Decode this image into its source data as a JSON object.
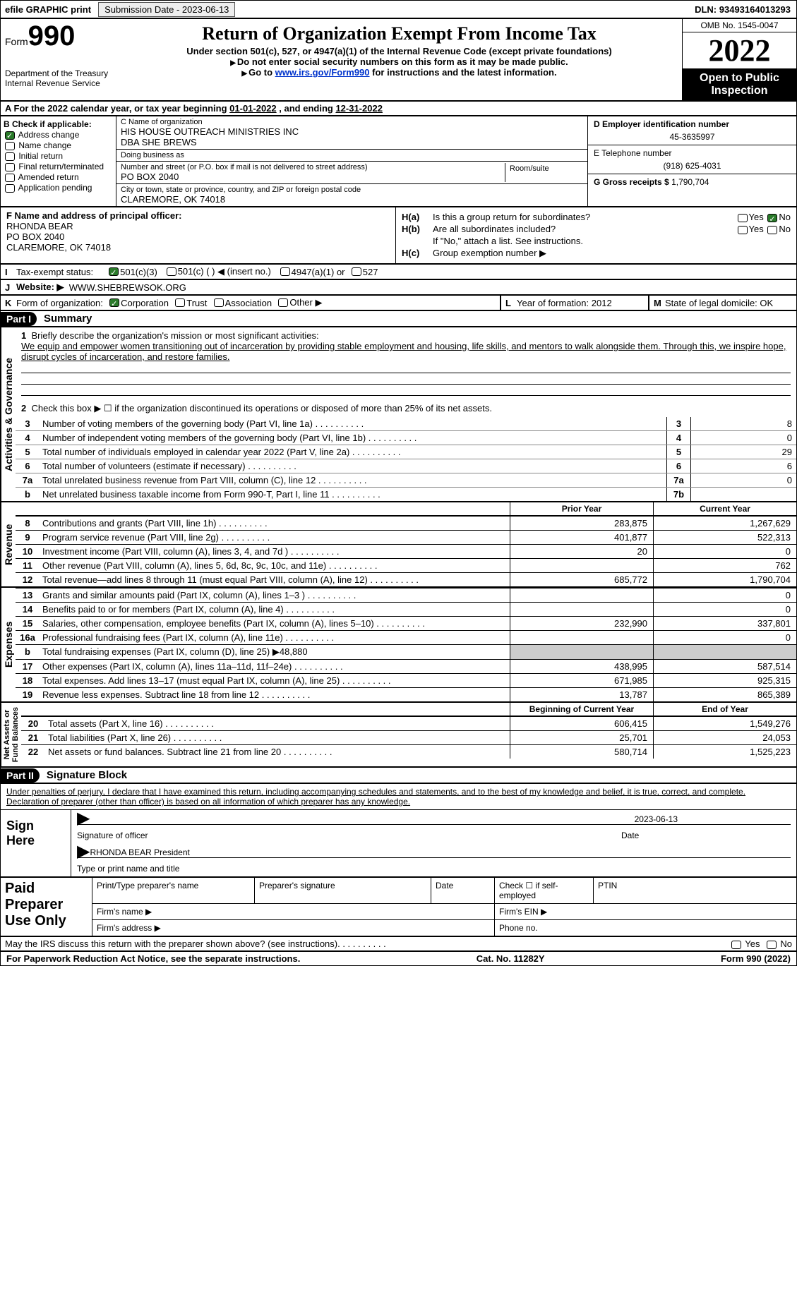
{
  "topbar": {
    "efile": "efile GRAPHIC print",
    "submission_label": "Submission Date - ",
    "submission_date": "2023-06-13",
    "dln_label": "DLN: ",
    "dln": "93493164013293"
  },
  "header": {
    "form_word": "Form",
    "form_no": "990",
    "dept": "Department of the Treasury\nInternal Revenue Service",
    "title": "Return of Organization Exempt From Income Tax",
    "subtitle": "Under section 501(c), 527, or 4947(a)(1) of the Internal Revenue Code (except private foundations)",
    "note1": "Do not enter social security numbers on this form as it may be made public.",
    "note2_pre": "Go to ",
    "note2_link": "www.irs.gov/Form990",
    "note2_post": " for instructions and the latest information.",
    "omb": "OMB No. 1545-0047",
    "year": "2022",
    "open": "Open to Public Inspection"
  },
  "line_a": {
    "text_pre": "For the 2022 calendar year, or tax year beginning ",
    "begin": "01-01-2022",
    "mid": " , and ending ",
    "end": "12-31-2022"
  },
  "box_b": {
    "label": "B Check if applicable:",
    "items": [
      "Address change",
      "Name change",
      "Initial return",
      "Final return/terminated",
      "Amended return",
      "Application pending"
    ],
    "checked_idx": 0
  },
  "box_c": {
    "name_label": "C Name of organization",
    "name": "HIS HOUSE OUTREACH MINISTRIES INC",
    "dba": "DBA SHE BREWS",
    "dba_label": "Doing business as",
    "street_label": "Number and street (or P.O. box if mail is not delivered to street address)",
    "street": "PO BOX 2040",
    "room_label": "Room/suite",
    "city_label": "City or town, state or province, country, and ZIP or foreign postal code",
    "city": "CLAREMORE, OK  74018"
  },
  "box_d": {
    "label": "D Employer identification number",
    "val": "45-3635997"
  },
  "box_e": {
    "label": "E Telephone number",
    "val": "(918) 625-4031"
  },
  "box_g": {
    "label": "G Gross receipts $",
    "val": "1,790,704"
  },
  "box_f": {
    "label": "F  Name and address of principal officer:",
    "name": "RHONDA BEAR",
    "street": "PO BOX 2040",
    "city": "CLAREMORE, OK  74018"
  },
  "box_h": {
    "a_label": "H(a)",
    "a_text": "Is this a group return for subordinates?",
    "b_label": "H(b)",
    "b_text": "Are all subordinates included?",
    "b_note": "If \"No,\" attach a list. See instructions.",
    "c_label": "H(c)",
    "c_text": "Group exemption number ▶",
    "yes": "Yes",
    "no": "No"
  },
  "line_i": {
    "label": "I",
    "text": "Tax-exempt status:",
    "opts": [
      "501(c)(3)",
      "501(c) (  ) ◀ (insert no.)",
      "4947(a)(1) or",
      "527"
    ]
  },
  "line_j": {
    "label": "J",
    "text": "Website: ▶",
    "val": "WWW.SHEBREWSOK.ORG"
  },
  "line_k": {
    "label": "K",
    "text": "Form of organization:",
    "opts": [
      "Corporation",
      "Trust",
      "Association",
      "Other ▶"
    ]
  },
  "line_l": {
    "label": "L",
    "text": "Year of formation:",
    "val": "2012"
  },
  "line_m": {
    "label": "M",
    "text": "State of legal domicile:",
    "val": "OK"
  },
  "part1": {
    "label": "Part I",
    "title": "Summary"
  },
  "mission": {
    "n": "1",
    "label": "Briefly describe the organization's mission or most significant activities:",
    "text": "We equip and empower women transitioning out of incarceration by providing stable employment and housing, life skills, and mentors to walk alongside them. Through this, we inspire hope, disrupt cycles of incarceration, and restore families."
  },
  "line2": {
    "n": "2",
    "text": "Check this box ▶ ☐ if the organization discontinued its operations or disposed of more than 25% of its net assets."
  },
  "gov_lines": [
    {
      "n": "3",
      "desc": "Number of voting members of the governing body (Part VI, line 1a)",
      "box": "3",
      "val": "8"
    },
    {
      "n": "4",
      "desc": "Number of independent voting members of the governing body (Part VI, line 1b)",
      "box": "4",
      "val": "0"
    },
    {
      "n": "5",
      "desc": "Total number of individuals employed in calendar year 2022 (Part V, line 2a)",
      "box": "5",
      "val": "29"
    },
    {
      "n": "6",
      "desc": "Total number of volunteers (estimate if necessary)",
      "box": "6",
      "val": "6"
    },
    {
      "n": "7a",
      "desc": "Total unrelated business revenue from Part VIII, column (C), line 12",
      "box": "7a",
      "val": "0"
    },
    {
      "n": "b",
      "desc": "Net unrelated business taxable income from Form 990-T, Part I, line 11",
      "box": "7b",
      "val": ""
    }
  ],
  "col_hdr": {
    "prior": "Prior Year",
    "current": "Current Year"
  },
  "revenue": [
    {
      "n": "8",
      "desc": "Contributions and grants (Part VIII, line 1h)",
      "c1": "283,875",
      "c2": "1,267,629"
    },
    {
      "n": "9",
      "desc": "Program service revenue (Part VIII, line 2g)",
      "c1": "401,877",
      "c2": "522,313"
    },
    {
      "n": "10",
      "desc": "Investment income (Part VIII, column (A), lines 3, 4, and 7d )",
      "c1": "20",
      "c2": "0"
    },
    {
      "n": "11",
      "desc": "Other revenue (Part VIII, column (A), lines 5, 6d, 8c, 9c, 10c, and 11e)",
      "c1": "",
      "c2": "762"
    },
    {
      "n": "12",
      "desc": "Total revenue—add lines 8 through 11 (must equal Part VIII, column (A), line 12)",
      "c1": "685,772",
      "c2": "1,790,704"
    }
  ],
  "expenses": [
    {
      "n": "13",
      "desc": "Grants and similar amounts paid (Part IX, column (A), lines 1–3 )",
      "c1": "",
      "c2": "0"
    },
    {
      "n": "14",
      "desc": "Benefits paid to or for members (Part IX, column (A), line 4)",
      "c1": "",
      "c2": "0"
    },
    {
      "n": "15",
      "desc": "Salaries, other compensation, employee benefits (Part IX, column (A), lines 5–10)",
      "c1": "232,990",
      "c2": "337,801"
    },
    {
      "n": "16a",
      "desc": "Professional fundraising fees (Part IX, column (A), line 11e)",
      "c1": "",
      "c2": "0"
    },
    {
      "n": "b",
      "desc": "Total fundraising expenses (Part IX, column (D), line 25) ▶48,880",
      "c1": "",
      "c2": "",
      "shaded": true
    },
    {
      "n": "17",
      "desc": "Other expenses (Part IX, column (A), lines 11a–11d, 11f–24e)",
      "c1": "438,995",
      "c2": "587,514"
    },
    {
      "n": "18",
      "desc": "Total expenses. Add lines 13–17 (must equal Part IX, column (A), line 25)",
      "c1": "671,985",
      "c2": "925,315"
    },
    {
      "n": "19",
      "desc": "Revenue less expenses. Subtract line 18 from line 12",
      "c1": "13,787",
      "c2": "865,389"
    }
  ],
  "na_hdr": {
    "begin": "Beginning of Current Year",
    "end": "End of Year"
  },
  "netassets": [
    {
      "n": "20",
      "desc": "Total assets (Part X, line 16)",
      "c1": "606,415",
      "c2": "1,549,276"
    },
    {
      "n": "21",
      "desc": "Total liabilities (Part X, line 26)",
      "c1": "25,701",
      "c2": "24,053"
    },
    {
      "n": "22",
      "desc": "Net assets or fund balances. Subtract line 21 from line 20",
      "c1": "580,714",
      "c2": "1,525,223"
    }
  ],
  "vtabs": {
    "gov": "Activities & Governance",
    "rev": "Revenue",
    "exp": "Expenses",
    "na": "Net Assets or\nFund Balances"
  },
  "part2": {
    "label": "Part II",
    "title": "Signature Block"
  },
  "sig": {
    "decl": "Under penalties of perjury, I declare that I have examined this return, including accompanying schedules and statements, and to the best of my knowledge and belief, it is true, correct, and complete. Declaration of preparer (other than officer) is based on all information of which preparer has any knowledge.",
    "sign_here": "Sign Here",
    "sig_officer": "Signature of officer",
    "date_label": "Date",
    "date": "2023-06-13",
    "name": "RHONDA BEAR  President",
    "name_label": "Type or print name and title"
  },
  "prep": {
    "label": "Paid Preparer Use Only",
    "h1": "Print/Type preparer's name",
    "h2": "Preparer's signature",
    "h3": "Date",
    "h4_pre": "Check ☐ if self-employed",
    "h5": "PTIN",
    "firm_name": "Firm's name  ▶",
    "firm_ein": "Firm's EIN ▶",
    "firm_addr": "Firm's address ▶",
    "phone": "Phone no."
  },
  "discuss": {
    "text": "May the IRS discuss this return with the preparer shown above? (see instructions)",
    "yes": "Yes",
    "no": "No"
  },
  "footer": {
    "left": "For Paperwork Reduction Act Notice, see the separate instructions.",
    "mid": "Cat. No. 11282Y",
    "right": "Form 990 (2022)"
  }
}
